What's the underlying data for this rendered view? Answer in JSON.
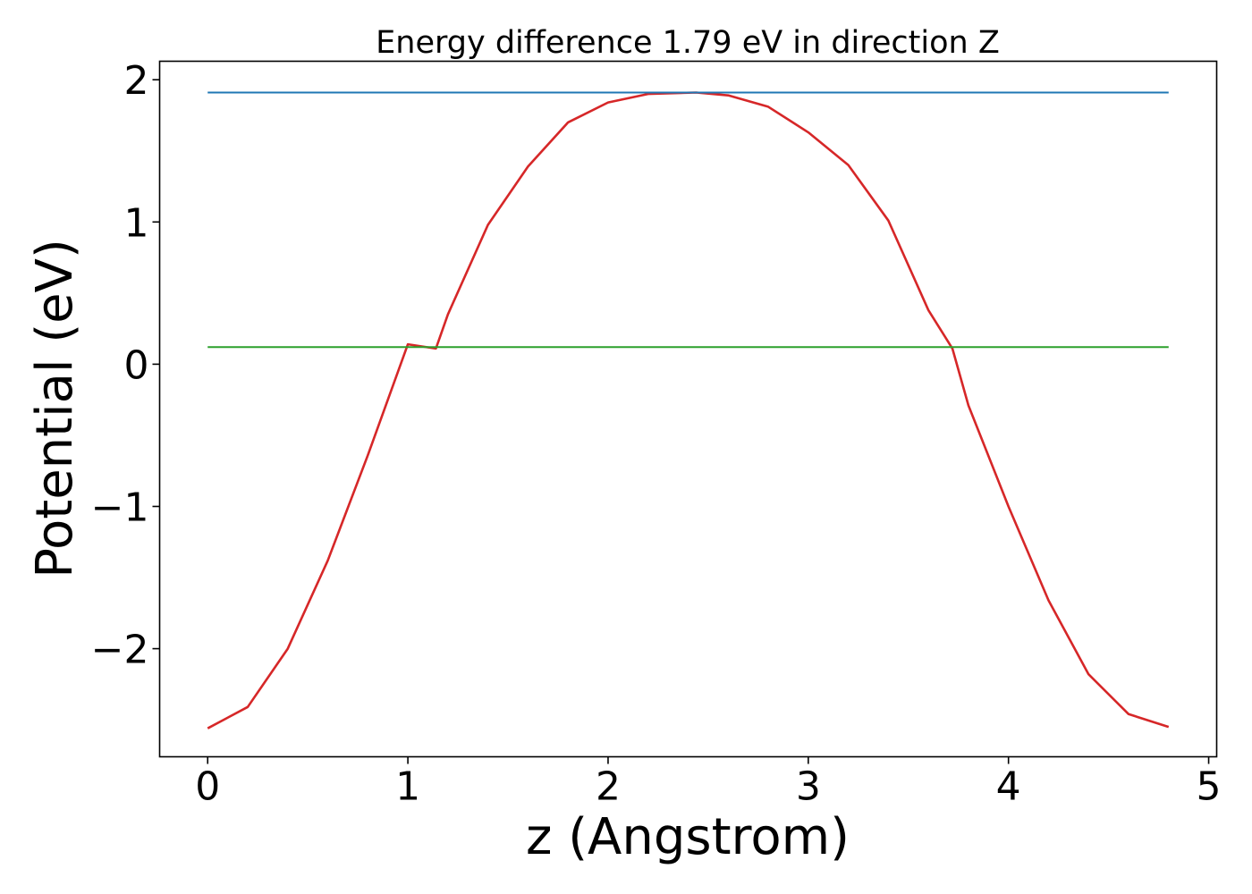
{
  "chart_data": {
    "type": "line",
    "title": "Energy difference 1.79 eV in direction Z",
    "xlabel": "z (Angstrom)",
    "ylabel": "Potential (eV)",
    "xlim": [
      -0.24,
      5.04
    ],
    "ylim": [
      -2.76,
      2.13
    ],
    "xticks": [
      0,
      1,
      2,
      3,
      4,
      5
    ],
    "xtick_labels": [
      "0",
      "1",
      "2",
      "3",
      "4",
      "5"
    ],
    "yticks": [
      -2,
      -1,
      0,
      1,
      2
    ],
    "ytick_labels": [
      "−2",
      "−1",
      "0",
      "1",
      "2"
    ],
    "grid": false,
    "series": [
      {
        "color": "#d62728",
        "x": [
          0.0,
          0.2,
          0.4,
          0.6,
          0.8,
          1.0,
          1.14,
          1.2,
          1.4,
          1.6,
          1.8,
          2.0,
          2.2,
          2.44,
          2.6,
          2.8,
          3.0,
          3.2,
          3.4,
          3.6,
          3.72,
          3.8,
          4.0,
          4.2,
          4.4,
          4.6,
          4.8
        ],
        "y": [
          -2.56,
          -2.41,
          -2.0,
          -1.38,
          -0.64,
          0.14,
          0.11,
          0.35,
          0.98,
          1.39,
          1.7,
          1.84,
          1.9,
          1.91,
          1.89,
          1.81,
          1.63,
          1.4,
          1.01,
          0.38,
          0.11,
          -0.29,
          -1.0,
          -1.66,
          -2.18,
          -2.46,
          -2.55
        ]
      },
      {
        "color": "#1f77b4",
        "x": [
          0.0,
          4.8
        ],
        "y": [
          1.91,
          1.91
        ]
      },
      {
        "color": "#2ca02c",
        "x": [
          0.0,
          4.8
        ],
        "y": [
          0.12,
          0.12
        ]
      }
    ]
  }
}
